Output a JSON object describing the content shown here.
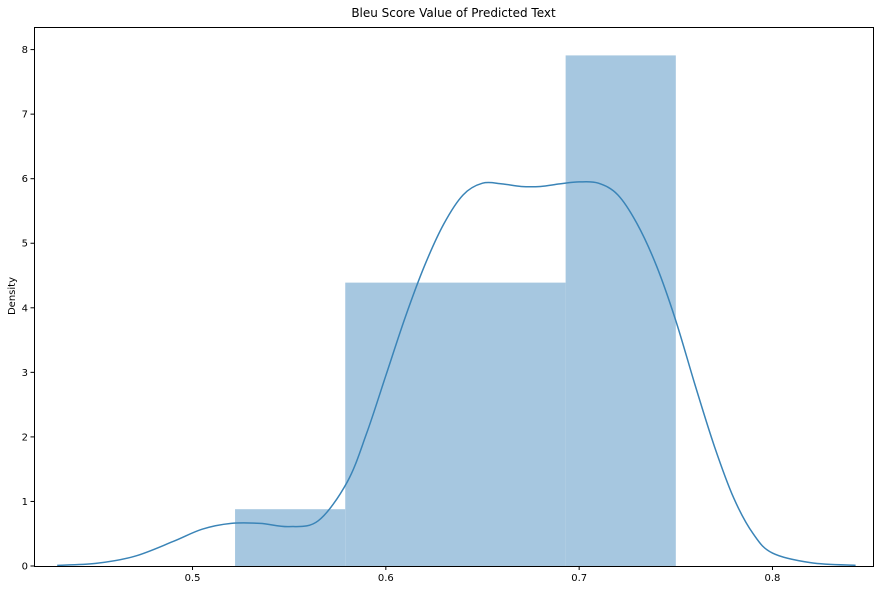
{
  "chart_data": {
    "type": "bar",
    "title": "Bleu Score Value of Predicted Text",
    "xlabel": "",
    "ylabel": "Density",
    "xlim": [
      0.418,
      0.852
    ],
    "ylim": [
      0,
      8.35
    ],
    "x_ticks": [
      0.5,
      0.6,
      0.7,
      0.8
    ],
    "y_ticks": [
      0,
      1,
      2,
      3,
      4,
      5,
      6,
      7,
      8
    ],
    "grid": false,
    "histogram": {
      "bins": [
        {
          "x0": 0.522,
          "x1": 0.579,
          "density": 0.88
        },
        {
          "x0": 0.579,
          "x1": 0.693,
          "density": 4.39
        },
        {
          "x0": 0.693,
          "x1": 0.75,
          "density": 7.91
        }
      ],
      "color": "#a6c7e0"
    },
    "kde": {
      "color": "#3a84b7",
      "x": [
        0.43,
        0.45,
        0.47,
        0.49,
        0.505,
        0.52,
        0.535,
        0.55,
        0.565,
        0.58,
        0.59,
        0.6,
        0.61,
        0.62,
        0.63,
        0.64,
        0.65,
        0.66,
        0.67,
        0.68,
        0.69,
        0.7,
        0.71,
        0.72,
        0.73,
        0.74,
        0.75,
        0.76,
        0.77,
        0.78,
        0.79,
        0.8,
        0.82,
        0.843
      ],
      "y": [
        0.01,
        0.04,
        0.15,
        0.38,
        0.57,
        0.66,
        0.66,
        0.61,
        0.7,
        1.3,
        2.05,
        2.95,
        3.85,
        4.65,
        5.3,
        5.75,
        5.93,
        5.92,
        5.88,
        5.88,
        5.92,
        5.95,
        5.93,
        5.75,
        5.3,
        4.65,
        3.8,
        2.8,
        1.85,
        1.05,
        0.5,
        0.2,
        0.05,
        0.01
      ]
    }
  }
}
